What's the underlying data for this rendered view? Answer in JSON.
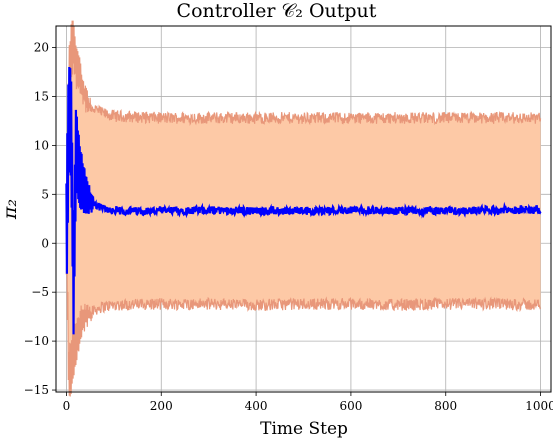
{
  "chart_data": {
    "type": "line",
    "title": "Controller 𝒞₂ Output",
    "xlabel": "Time Step",
    "ylabel": "π₂",
    "xlim": [
      -22,
      1022
    ],
    "ylim": [
      -15.2,
      22.2
    ],
    "x_ticks": [
      0,
      200,
      400,
      600,
      800,
      1000
    ],
    "y_ticks": [
      -15,
      -10,
      -5,
      0,
      5,
      10,
      15,
      20
    ],
    "grid": true,
    "legend": "none",
    "colors": {
      "mean_line": "#0000ff",
      "band_fill": "#fdc9a6",
      "band_edge": "#e8977a",
      "grid": "#b0b0b0",
      "axes": "#000000"
    },
    "series": [
      {
        "role": "mean",
        "x": [
          0,
          5,
          10,
          15,
          20,
          30,
          40,
          50,
          75,
          100,
          200,
          300,
          400,
          500,
          600,
          700,
          800,
          900,
          1000
        ],
        "y": [
          0,
          13.2,
          11.8,
          -4.5,
          9.5,
          6.5,
          5.0,
          4.2,
          3.6,
          3.3,
          3.3,
          3.4,
          3.3,
          3.3,
          3.4,
          3.3,
          3.3,
          3.4,
          3.4
        ]
      },
      {
        "role": "upper_bound",
        "x": [
          0,
          5,
          10,
          15,
          20,
          30,
          40,
          50,
          75,
          100,
          200,
          300,
          400,
          500,
          600,
          700,
          800,
          900,
          1000
        ],
        "y": [
          0,
          16.5,
          19.5,
          20.2,
          18.5,
          16.5,
          15.0,
          14.0,
          13.3,
          13.0,
          12.8,
          12.8,
          12.8,
          12.8,
          12.8,
          12.8,
          12.8,
          12.8,
          12.8
        ]
      },
      {
        "role": "lower_bound",
        "x": [
          0,
          5,
          10,
          15,
          20,
          30,
          40,
          50,
          75,
          100,
          200,
          300,
          400,
          500,
          600,
          700,
          800,
          900,
          1000
        ],
        "y": [
          0,
          -13.5,
          -12.5,
          -11.0,
          -10.0,
          -8.5,
          -7.5,
          -7.0,
          -6.5,
          -6.3,
          -6.2,
          -6.2,
          -6.3,
          -6.2,
          -6.2,
          -6.3,
          -6.2,
          -6.2,
          -6.3
        ]
      }
    ]
  }
}
